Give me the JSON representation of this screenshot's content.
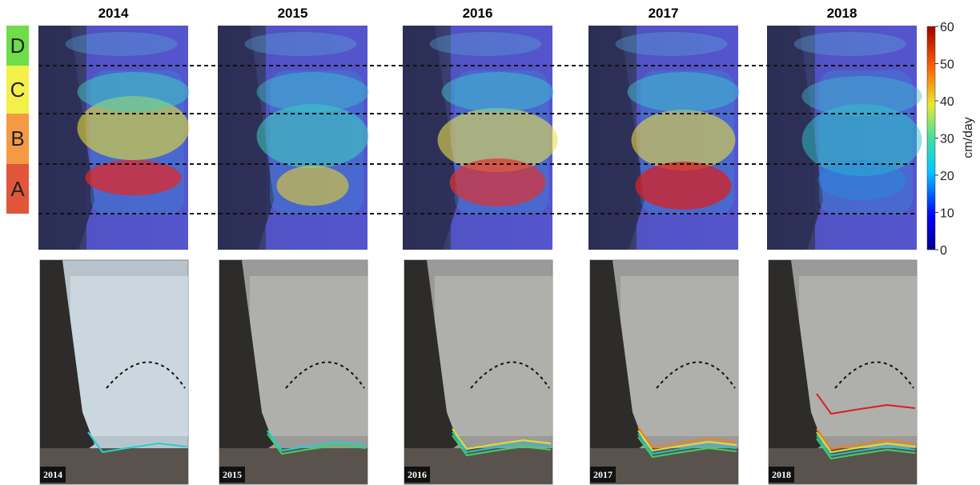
{
  "panels": {
    "years": [
      "2014",
      "2015",
      "2016",
      "2017",
      "2018"
    ]
  },
  "zones": {
    "labels": [
      "D",
      "C",
      "B",
      "A"
    ]
  },
  "colorbar": {
    "label": "cm/day",
    "lim": [
      0,
      60
    ],
    "ticks": [
      0,
      10,
      20,
      30,
      40,
      50,
      60
    ]
  },
  "photo_labels": [
    "2014",
    "2015",
    "2016",
    "2017",
    "2018"
  ]
}
